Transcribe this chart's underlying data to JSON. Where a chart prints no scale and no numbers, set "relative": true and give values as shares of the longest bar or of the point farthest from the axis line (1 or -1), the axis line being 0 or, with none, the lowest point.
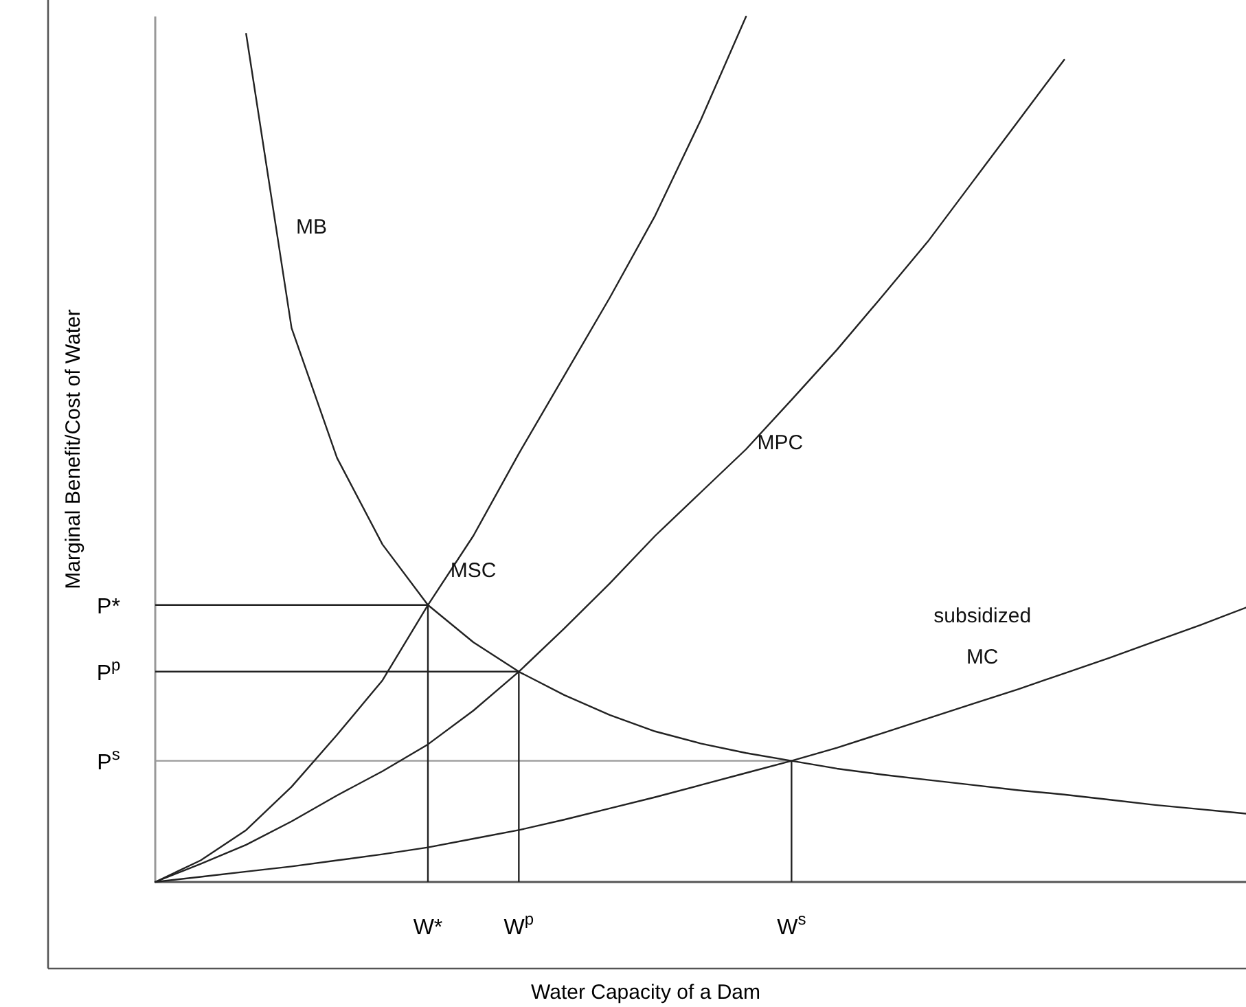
{
  "chart_data": {
    "type": "line",
    "relative": true,
    "xlabel": "Water Capacity of a Dam",
    "ylabel": "Marginal Benefit/Cost of Water",
    "grid": false,
    "legend": false,
    "marker": "none",
    "line_style": "solid",
    "categories": [
      null,
      null,
      null,
      null,
      null,
      null,
      "W*",
      null,
      "W$^{p}$",
      null,
      null,
      null,
      null,
      null,
      "W$^{s}$",
      null,
      null,
      null,
      null,
      null,
      null,
      null,
      null,
      null,
      null
    ],
    "series": [
      {
        "name": "MB",
        "color": "#222222",
        "values": [
          null,
          null,
          0.98,
          0.64,
          0.49,
          0.39,
          0.32,
          0.277,
          0.243,
          0.216,
          0.193,
          0.174,
          0.16,
          0.149,
          0.14,
          0.131,
          0.124,
          0.118,
          0.112,
          0.106,
          0.101,
          0.095,
          0.089,
          0.084,
          0.079
        ]
      },
      {
        "name": "MSC",
        "color": "#222222",
        "values": [
          0,
          0.025,
          0.06,
          0.11,
          0.17,
          0.233,
          0.32,
          0.4,
          0.495,
          0.585,
          0.675,
          0.77,
          0.88,
          1.0,
          null,
          null,
          null,
          null,
          null,
          null,
          null,
          null,
          null,
          null,
          null
        ]
      },
      {
        "name": "MPC",
        "color": "#222222",
        "values": [
          0,
          0.021,
          0.043,
          0.07,
          0.1,
          0.128,
          0.159,
          0.198,
          0.243,
          0.293,
          0.345,
          0.4,
          0.45,
          0.5,
          0.557,
          0.615,
          0.677,
          0.74,
          0.81,
          0.88,
          0.95,
          null,
          null,
          null,
          null
        ]
      },
      {
        "name": "subsidized MC",
        "color": "#222222",
        "values": [
          0,
          0.006,
          0.012,
          0.018,
          0.025,
          0.032,
          0.04,
          0.05,
          0.06,
          0.072,
          0.085,
          0.098,
          0.112,
          0.126,
          0.14,
          0.155,
          0.172,
          0.189,
          0.206,
          0.223,
          0.241,
          0.259,
          0.278,
          0.297,
          0.317
        ]
      }
    ],
    "ref_lines": [
      {
        "axis": "y",
        "value": 0.32,
        "label": "P*",
        "color": "#222222"
      },
      {
        "axis": "y",
        "value": 0.243,
        "label": "P$^{p}$",
        "color": "#222222"
      },
      {
        "axis": "y",
        "value": 0.14,
        "label": "P$^{s}$",
        "color": "#999999"
      },
      {
        "axis": "x",
        "value": "W*",
        "color": "#222222"
      },
      {
        "axis": "x",
        "value": "W$^{p}$",
        "color": "#222222"
      },
      {
        "axis": "x",
        "value": "W$^{s}$",
        "color": "#222222"
      }
    ]
  }
}
